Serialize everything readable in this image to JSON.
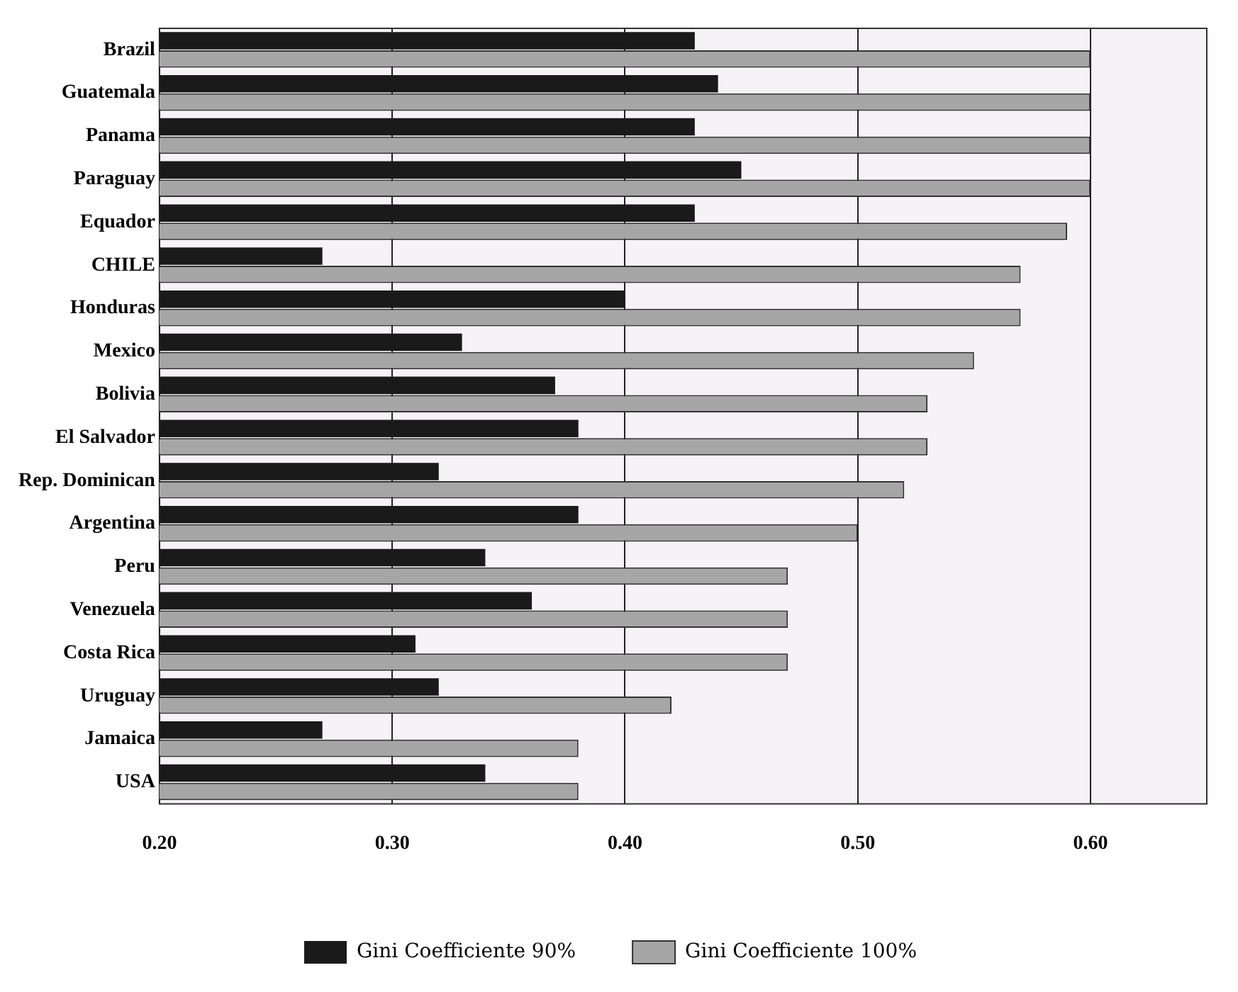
{
  "chart_data": {
    "type": "bar",
    "orientation": "horizontal",
    "categories": [
      "Brazil",
      "Guatemala",
      "Panama",
      "Paraguay",
      "Equador",
      "CHILE",
      "Honduras",
      "Mexico",
      "Bolivia",
      "El Salvador",
      "Rep. Dominican",
      "Argentina",
      "Peru",
      "Venezuela",
      "Costa Rica",
      "Uruguay",
      "Jamaica",
      "USA"
    ],
    "series": [
      {
        "name": "Gini Coefficiente 90%",
        "color": "#1a1a1a",
        "values": [
          0.43,
          0.44,
          0.43,
          0.45,
          0.43,
          0.27,
          0.4,
          0.33,
          0.37,
          0.38,
          0.32,
          0.38,
          0.34,
          0.36,
          0.31,
          0.32,
          0.27,
          0.34
        ]
      },
      {
        "name": "Gini Coefficiente 100%",
        "color": "#a6a6a6",
        "values": [
          0.6,
          0.6,
          0.6,
          0.6,
          0.59,
          0.57,
          0.57,
          0.55,
          0.53,
          0.53,
          0.52,
          0.5,
          0.47,
          0.47,
          0.47,
          0.42,
          0.38,
          0.38
        ]
      }
    ],
    "xlim": [
      0.2,
      0.65
    ],
    "xticks": [
      {
        "value": 0.2,
        "label": "0.20"
      },
      {
        "value": 0.3,
        "label": "0.30"
      },
      {
        "value": 0.4,
        "label": "0.40"
      },
      {
        "value": 0.5,
        "label": "0.50"
      },
      {
        "value": 0.6,
        "label": "0.60"
      }
    ],
    "grid": "x",
    "legend": "bottom"
  }
}
